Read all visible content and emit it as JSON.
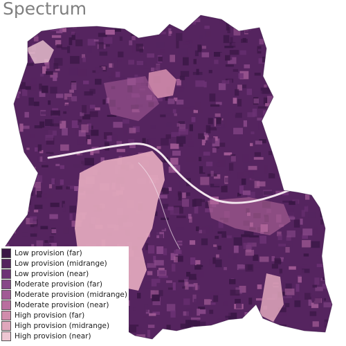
{
  "title": "Spectrum",
  "legend": {
    "items": [
      {
        "label": "Low provision (far)",
        "color": "#3b1746"
      },
      {
        "label": "Low provision (midrange)",
        "color": "#55245f"
      },
      {
        "label": "Low provision (near)",
        "color": "#6d3275"
      },
      {
        "label": "Moderate provision (far)",
        "color": "#874788"
      },
      {
        "label": "Moderate provision (midrange)",
        "color": "#a15a95"
      },
      {
        "label": "Moderate provision (near)",
        "color": "#b96e9f"
      },
      {
        "label": "High provision (far)",
        "color": "#d18cac"
      },
      {
        "label": "High provision (midrange)",
        "color": "#e0a7bc"
      },
      {
        "label": "High provision (near)",
        "color": "#edc6d2"
      }
    ]
  },
  "map": {
    "river_color": "#f3e6ee",
    "background": "#ffffff"
  }
}
